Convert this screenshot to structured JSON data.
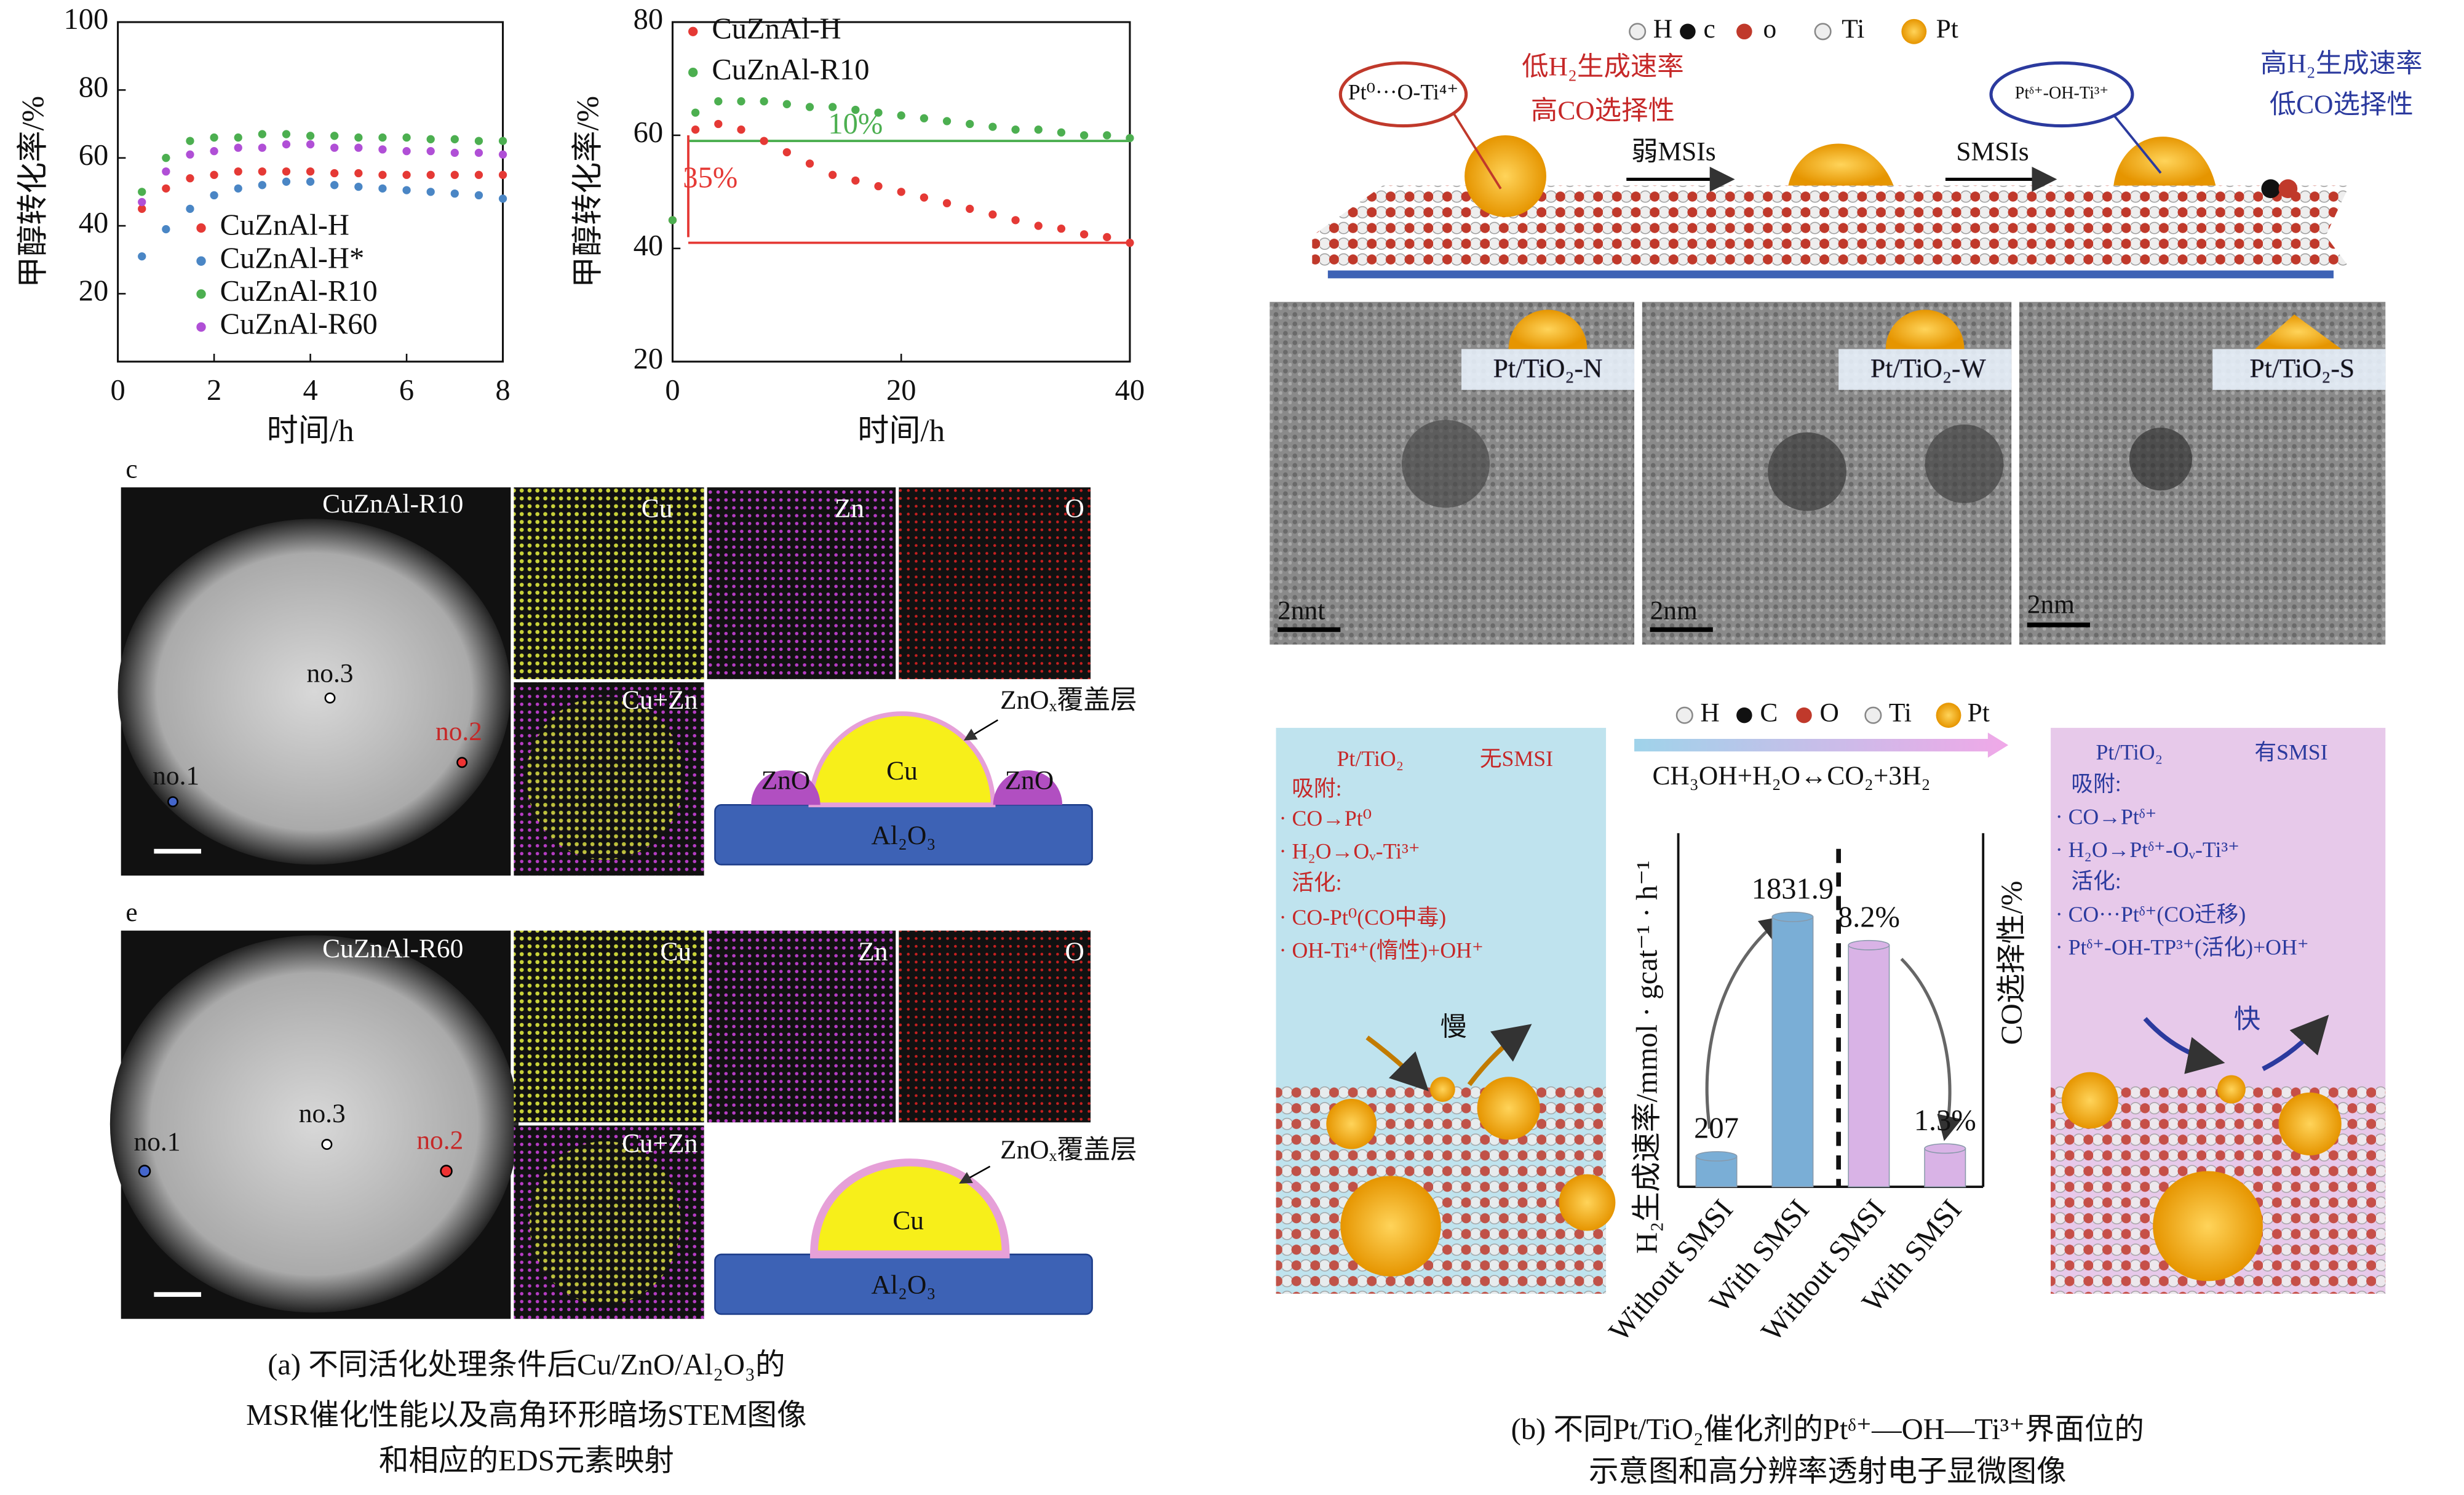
{
  "chart_data": [
    {
      "type": "line",
      "xlabel": "时间/h",
      "ylabel": "甲醇转化率/%",
      "x": [
        0.5,
        1,
        1.5,
        2,
        2.5,
        3,
        3.5,
        4,
        4.5,
        5,
        5.5,
        6,
        6.5,
        7,
        7.5,
        8
      ],
      "xlim": [
        0,
        8
      ],
      "xticks": [
        0,
        2,
        4,
        6,
        8
      ],
      "ylim": [
        0,
        100
      ],
      "yticks": [
        20,
        40,
        60,
        80,
        100
      ],
      "series": [
        {
          "name": "CuZnAl-H",
          "color": "#e53935",
          "values": [
            45,
            51,
            54,
            55,
            56,
            56,
            56,
            56,
            55.5,
            55.5,
            55,
            55,
            55,
            55,
            55,
            55
          ]
        },
        {
          "name": "CuZnAl-H*",
          "color": "#4a86c5",
          "values": [
            31,
            39,
            45,
            49,
            51,
            52,
            53,
            53,
            52,
            51.5,
            51,
            50.5,
            50,
            49.5,
            49,
            48
          ]
        },
        {
          "name": "CuZnAl-R10",
          "color": "#4caf50",
          "values": [
            50,
            60,
            65,
            66,
            66,
            67,
            67,
            66.5,
            66.5,
            66,
            66,
            66,
            65.5,
            65.5,
            65,
            65
          ]
        },
        {
          "name": "CuZnAl-R60",
          "color": "#b04fd6",
          "values": [
            47,
            56,
            61,
            62,
            63,
            63,
            64,
            64,
            63,
            63,
            62.5,
            62,
            62,
            61.5,
            61.5,
            61
          ]
        }
      ]
    },
    {
      "type": "line",
      "xlabel": "时间/h",
      "ylabel": "甲醇转化率/%",
      "x": [
        0,
        2,
        4,
        6,
        8,
        10,
        12,
        14,
        16,
        18,
        20,
        22,
        24,
        26,
        28,
        30,
        32,
        34,
        36,
        38,
        40
      ],
      "xlim": [
        0,
        40
      ],
      "xticks": [
        0,
        20,
        40
      ],
      "ylim": [
        20,
        80
      ],
      "yticks": [
        20,
        40,
        60,
        80
      ],
      "series": [
        {
          "name": "CuZnAl-H",
          "color": "#e53935",
          "values": [
            45,
            61,
            62,
            61,
            59,
            57,
            55,
            53,
            52,
            51,
            50,
            49,
            48,
            47,
            46,
            45,
            44,
            43.5,
            42.5,
            42,
            41
          ]
        },
        {
          "name": "CuZnAl-R10",
          "color": "#4caf50",
          "values": [
            45,
            64,
            66,
            66,
            66,
            65.5,
            65,
            65,
            64.5,
            64,
            63.5,
            63,
            62.5,
            62,
            61.5,
            61,
            61,
            60.5,
            60,
            60,
            59.5
          ]
        }
      ],
      "reference_lines": [
        {
          "value": 59,
          "color": "#4caf50"
        },
        {
          "value": 41,
          "color": "#e53935"
        }
      ],
      "annotations": [
        {
          "text": "10%",
          "color": "#4caf50"
        },
        {
          "text": "35%",
          "color": "#e53935"
        }
      ]
    },
    {
      "type": "bar",
      "ylabel": "H₂生成速率/mmol · gcat⁻¹ · h⁻¹",
      "y2label": "CO选择性/%",
      "categories": [
        "Without SMSI",
        "With SMSI",
        "Without SMSI",
        "With SMSI"
      ],
      "ylim": [
        0,
        2400
      ],
      "y2lim": [
        0,
        12
      ],
      "series": [
        {
          "color": "#7aaed6",
          "values": [
            207,
            1831.9,
            null,
            null
          ]
        },
        {
          "color": "#d9b3e6",
          "axis": "y2",
          "values": [
            null,
            null,
            8.2,
            1.3
          ],
          "value_labels": [
            null,
            null,
            "8.2%",
            "1.3%"
          ]
        }
      ]
    }
  ],
  "panel_a": {
    "caption": [
      "(a) 不同活化处理条件后Cu/ZnO/Al₂O₃的",
      "MSR催化性能以及高角环形暗场STEM图像",
      "和相应的EDS元素映射"
    ],
    "stem": [
      {
        "letter": "c",
        "sample": "CuZnAl-R10",
        "maps": [
          "Cu",
          "Zn",
          "O",
          "Cu+Zn"
        ],
        "points": [
          "no.3",
          "no.2",
          "no.1"
        ],
        "cover": "ZnOₓ覆盖层",
        "layers": [
          "ZnO",
          "Cu",
          "ZnO",
          "Al₂O₃"
        ]
      },
      {
        "letter": "e",
        "sample": "CuZnAl-R60",
        "maps": [
          "Cu",
          "Zn",
          "O",
          "Cu+Zn"
        ],
        "points": [
          "no.3",
          "no.2",
          "no.1"
        ],
        "cover": "ZnOₓ覆盖层",
        "layers": [
          "Cu",
          "Al₂O₃"
        ]
      }
    ]
  },
  "panel_b": {
    "caption": [
      "(b) 不同Pt/TiO₂催化剂的Ptᵟ⁺—OH—Ti³⁺界面位的",
      "示意图和高分辨率透射电子显微图像"
    ],
    "legend_top": [
      "H",
      "c",
      "o",
      "Ti",
      "Pt"
    ],
    "scheme": {
      "left_site": "Pt⁰···O-Ti⁴⁺",
      "left_text": [
        "低H₂生成速率",
        "高CO选择性"
      ],
      "weak": "弱MSIs",
      "strong": "SMSIs",
      "right_site": "Ptᵟ⁺-OH-Ti³⁺",
      "right_text": [
        "高H₂生成速率",
        "低CO选择性"
      ]
    },
    "tem": [
      {
        "label": "Pt/TiO₂-N",
        "scale": "2nnt"
      },
      {
        "label": "Pt/TiO₂-W",
        "scale": "2nm"
      },
      {
        "label": "Pt/TiO₂-S",
        "scale": "2nm"
      }
    ],
    "legend_bottom": [
      "H",
      "C",
      "O",
      "Ti",
      "Pt"
    ],
    "equation": "CH₃OH+H₂O↔CO₂+3H₂",
    "boxes": [
      {
        "title": "Pt/TiO₂",
        "state": "无SMSI",
        "lines": [
          "吸附:",
          "· CO→Pt⁰",
          "· H₂O→Oᵥ-Ti³⁺",
          "活化:",
          "· CO-Pt⁰(CO中毒)",
          "· OH-Ti⁴⁺(惰性)+OH⁺"
        ],
        "speed": "慢"
      },
      {
        "title": "Pt/TiO₂",
        "state": "有SMSI",
        "lines": [
          "吸附:",
          "· CO→Ptᵟ⁺",
          "· H₂O→Ptᵟ⁺-Oᵥ-Ti³⁺",
          "活化:",
          "· CO···Ptᵟ⁺(CO迁移)",
          "· Ptᵟ⁺-OH-TP³⁺(活化)+OH⁺"
        ],
        "speed": "快"
      }
    ]
  }
}
